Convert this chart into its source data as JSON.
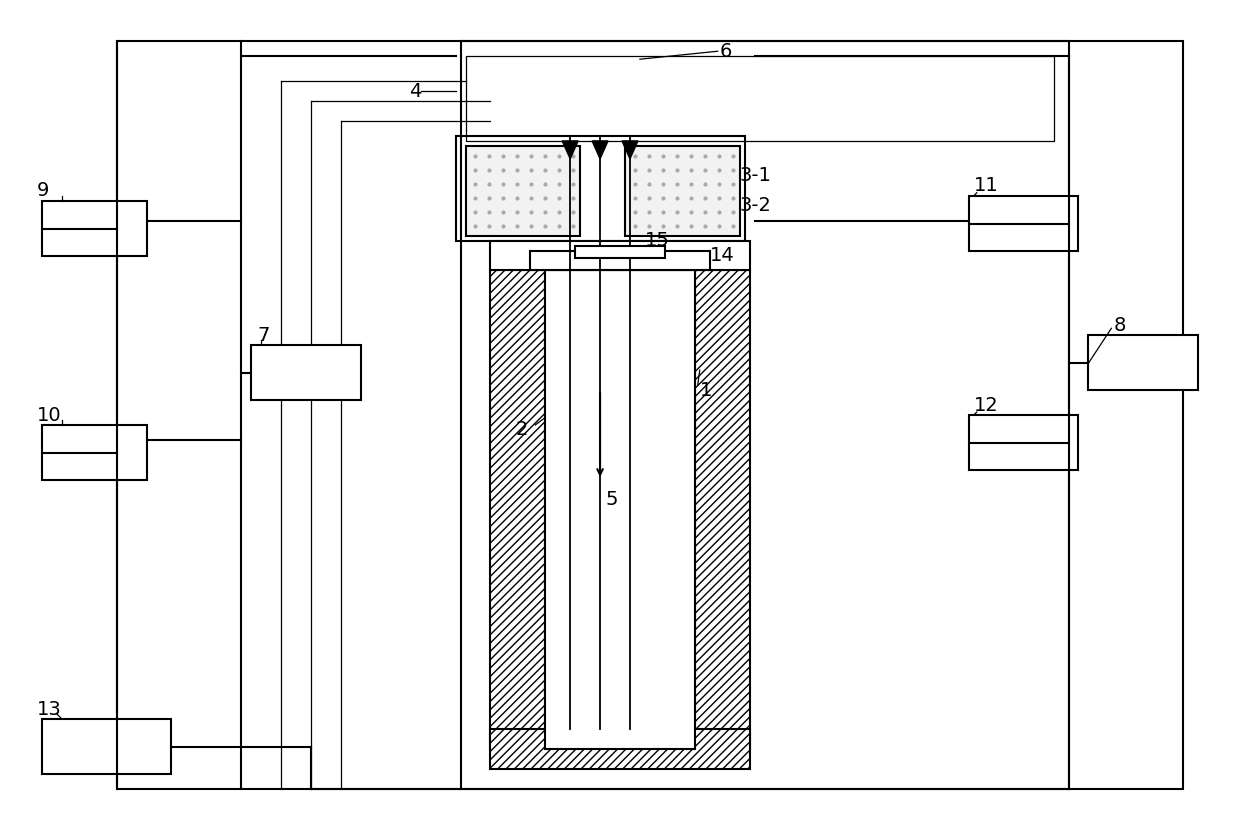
{
  "fig_width": 12.4,
  "fig_height": 8.34,
  "bg_color": "#ffffff",
  "lc": "#000000",
  "lw": 1.5,
  "tlw": 0.9
}
